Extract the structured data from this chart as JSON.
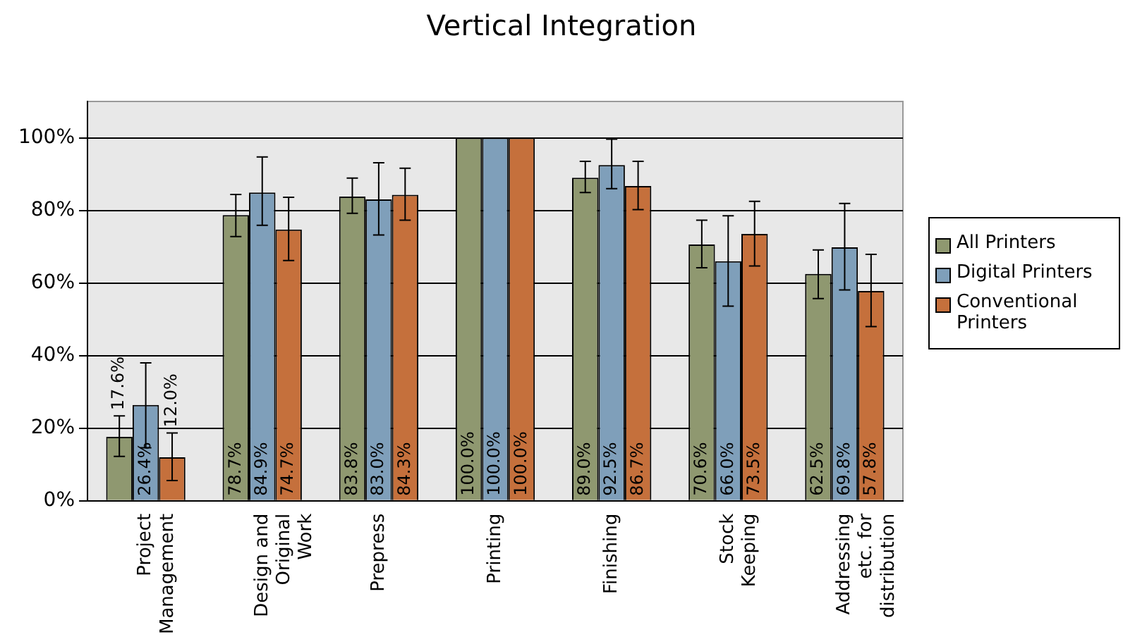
{
  "chart_data": {
    "type": "bar",
    "title": "Vertical Integration",
    "categories": [
      "Project Management",
      "Design and Original Work",
      "Prepress",
      "Printing",
      "Finishing",
      "Stock Keeping",
      "Addressing etc. for distribution"
    ],
    "series": [
      {
        "name": "All Printers",
        "color": "#8f9870",
        "values": [
          17.6,
          78.7,
          83.8,
          100.0,
          89.0,
          70.6,
          62.5
        ],
        "value_labels": [
          "17.6%",
          "78.7%",
          "83.8%",
          "100.0%",
          "89.0%",
          "70.6%",
          "62.5%"
        ],
        "errors": [
          [
            12.2,
            23.4
          ],
          [
            72.8,
            84.4
          ],
          [
            79.2,
            88.9
          ],
          null,
          [
            84.9,
            93.5
          ],
          [
            64.2,
            77.3
          ],
          [
            55.7,
            69.1
          ]
        ]
      },
      {
        "name": "Digital Printers",
        "color": "#7f9fba",
        "values": [
          26.4,
          84.9,
          83.0,
          100.0,
          92.5,
          66.0,
          69.8
        ],
        "value_labels": [
          "26.4%",
          "84.9%",
          "83.0%",
          "100.0%",
          "92.5%",
          "66.0%",
          "69.8%"
        ],
        "errors": [
          [
            14.6,
            38.0
          ],
          [
            75.9,
            94.7
          ],
          [
            73.2,
            93.1
          ],
          null,
          [
            86.0,
            99.6
          ],
          [
            53.6,
            78.5
          ],
          [
            58.1,
            81.9
          ]
        ]
      },
      {
        "name": "Conventional Printers",
        "color": "#c5703c",
        "values": [
          12.0,
          74.7,
          84.3,
          100.0,
          86.7,
          73.5,
          57.8
        ],
        "value_labels": [
          "12.0%",
          "74.7%",
          "84.3%",
          "100.0%",
          "86.7%",
          "73.5%",
          "57.8%"
        ],
        "errors": [
          [
            5.6,
            18.7
          ],
          [
            66.2,
            83.6
          ],
          [
            77.3,
            91.6
          ],
          null,
          [
            80.2,
            93.5
          ],
          [
            64.7,
            82.5
          ],
          [
            48.0,
            67.9
          ]
        ]
      }
    ],
    "ylim": [
      0,
      110
    ],
    "yticks": [
      {
        "value": 0,
        "label": "0%"
      },
      {
        "value": 20,
        "label": "20%"
      },
      {
        "value": 40,
        "label": "40%"
      },
      {
        "value": 60,
        "label": "60%"
      },
      {
        "value": 80,
        "label": "80%"
      },
      {
        "value": 100,
        "label": "100%"
      }
    ],
    "grid": "y",
    "legend": "right"
  }
}
